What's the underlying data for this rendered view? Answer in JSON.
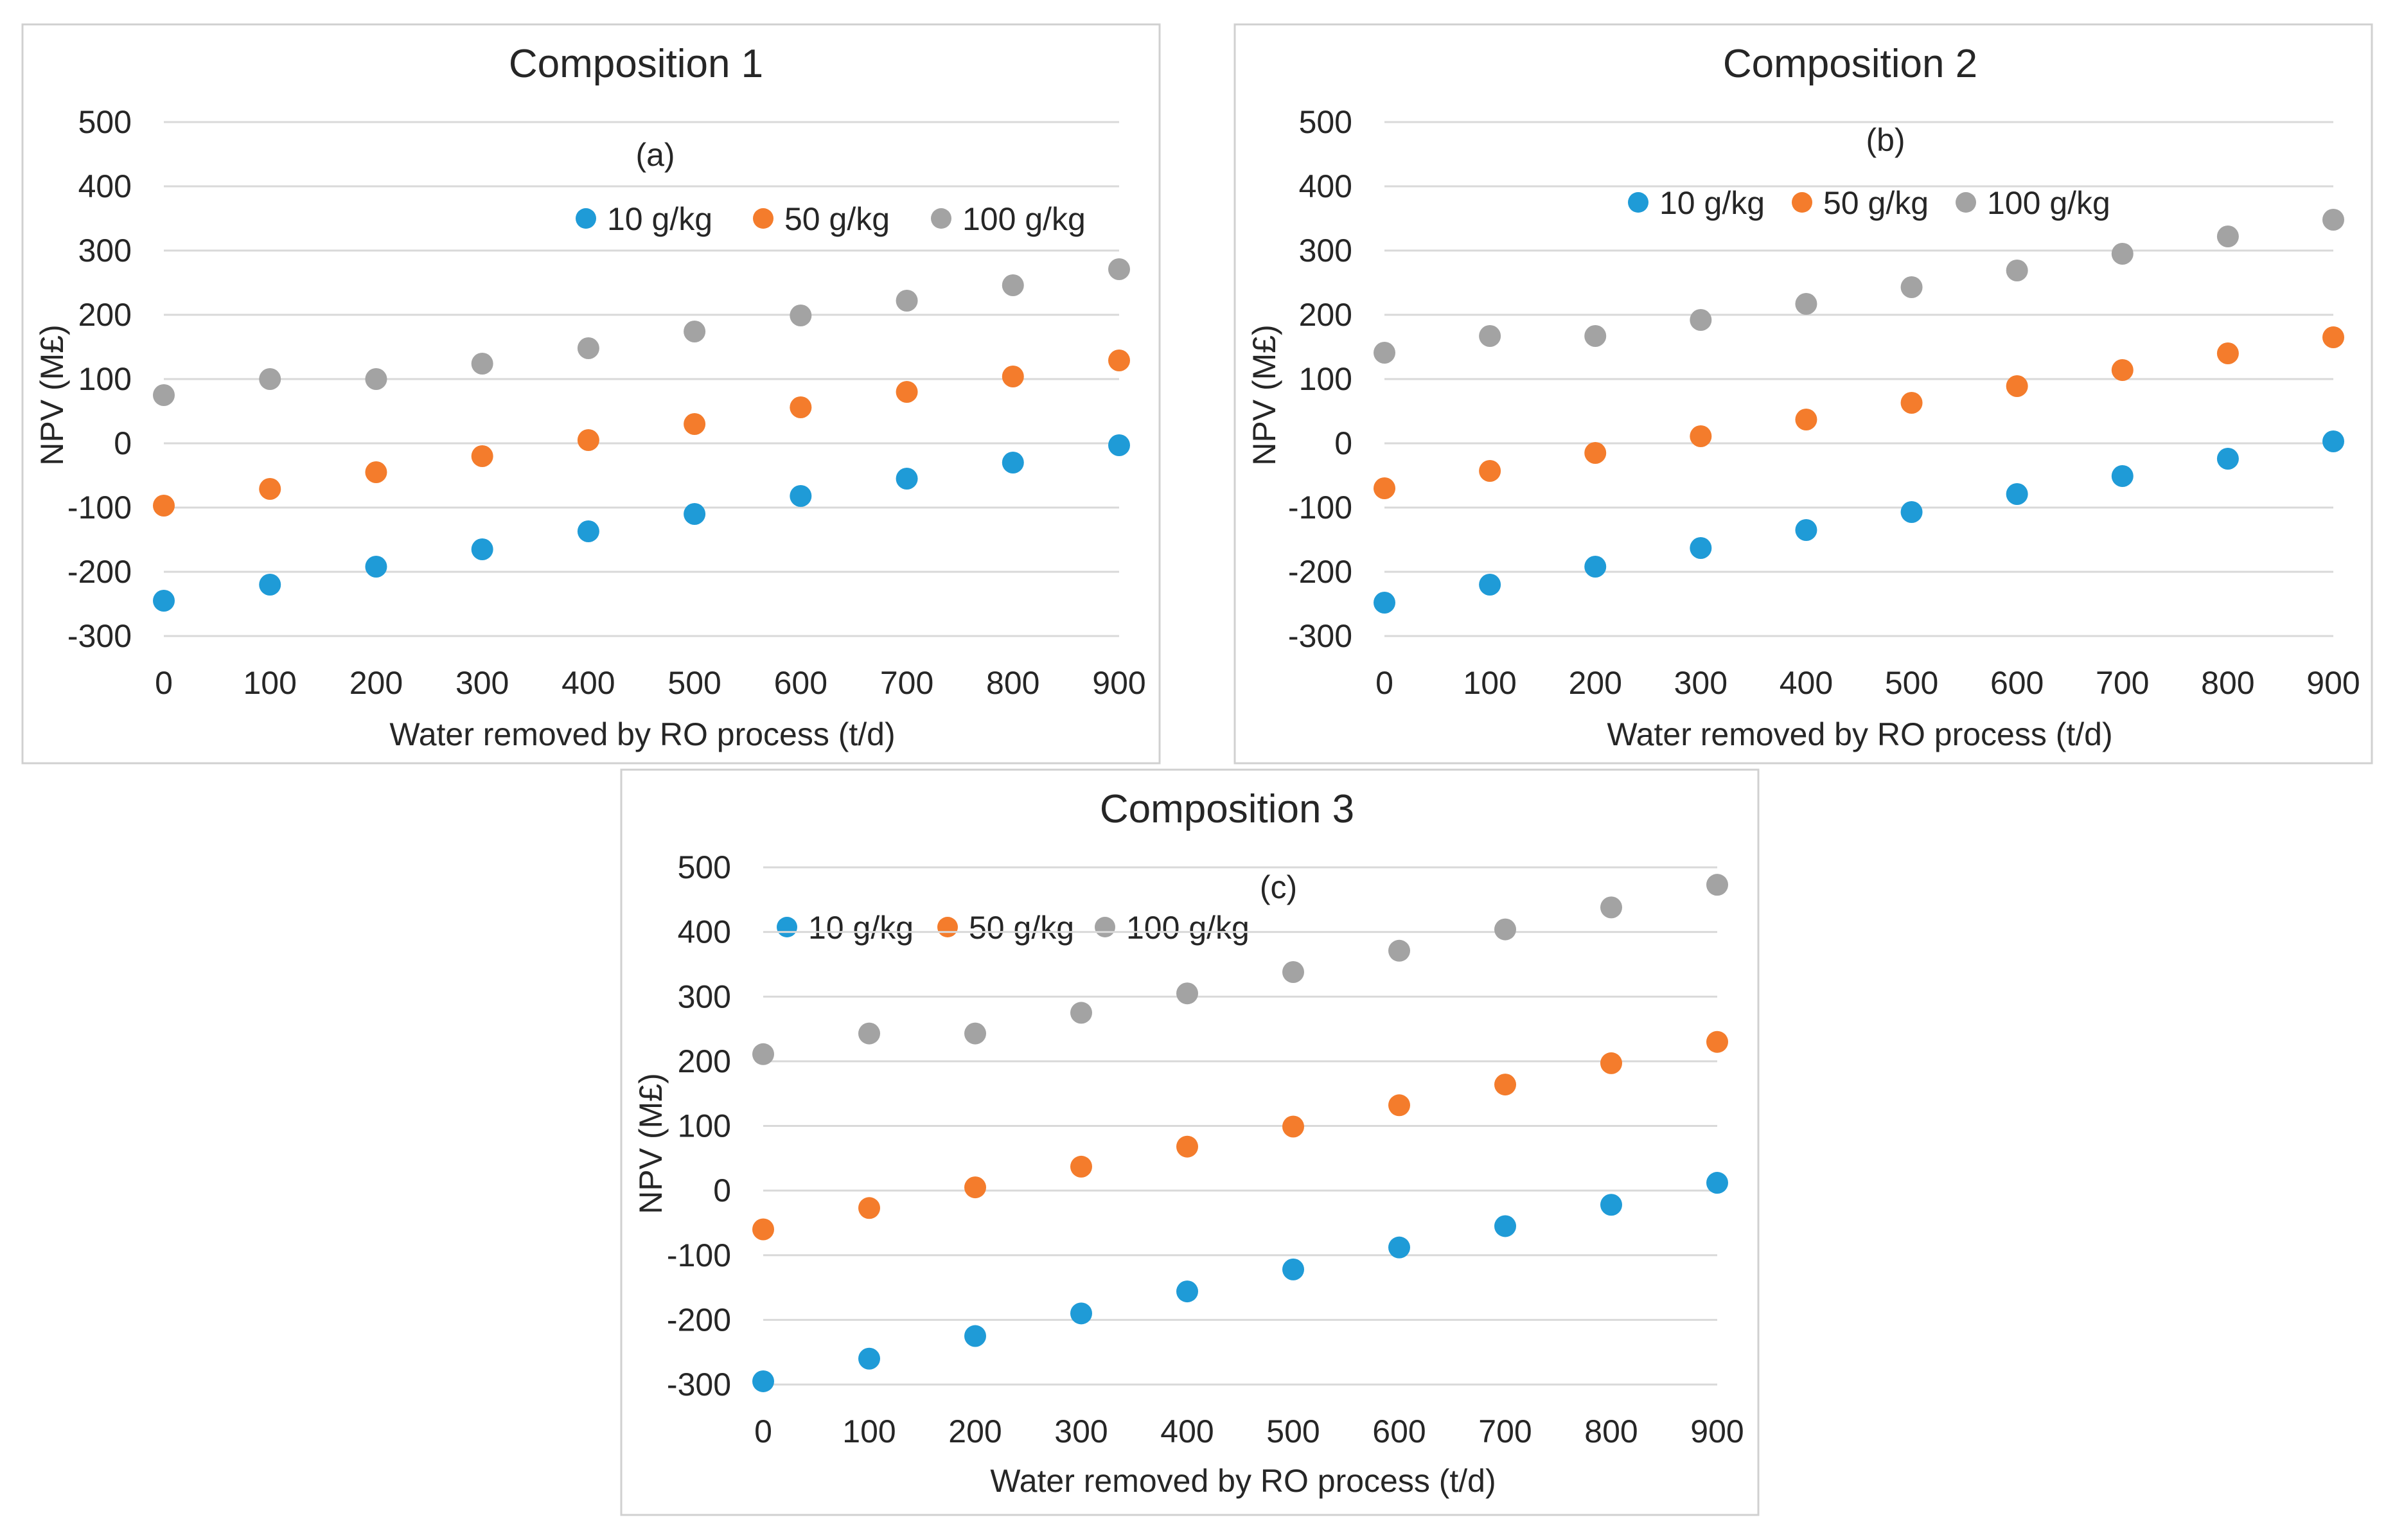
{
  "colors": {
    "s10": "#1f9bd7",
    "s50": "#f47c2c",
    "s100": "#a3a3a3",
    "grid": "#d9d9d9",
    "text": "#262626"
  },
  "chart_data": [
    {
      "type": "scatter",
      "title": "Composition 1",
      "panel_tag": "(a)",
      "xlabel": "Water removed by RO process (t/d)",
      "ylabel": "NPV (M£)",
      "x": [
        0,
        100,
        200,
        300,
        400,
        500,
        600,
        700,
        800,
        900
      ],
      "xlim": [
        0,
        900
      ],
      "ylim": [
        -300,
        500
      ],
      "xticks": [
        "0",
        "100",
        "200",
        "300",
        "400",
        "500",
        "600",
        "700",
        "800",
        "900"
      ],
      "yticks": [
        "500",
        "400",
        "300",
        "200",
        "100",
        "0",
        "-100",
        "-200",
        "-300"
      ],
      "legend": [
        "10 g/kg",
        "50 g/kg",
        "100 g/kg"
      ],
      "series": [
        {
          "name": "10 g/kg",
          "values": [
            -245,
            -220,
            -192,
            -165,
            -137,
            -110,
            -82,
            -55,
            -30,
            -3
          ]
        },
        {
          "name": "50 g/kg",
          "values": [
            -97,
            -71,
            -45,
            -20,
            5,
            30,
            56,
            80,
            104,
            129
          ]
        },
        {
          "name": "100 g/kg",
          "values": [
            75,
            100,
            100,
            124,
            148,
            174,
            199,
            222,
            246,
            271
          ]
        }
      ]
    },
    {
      "type": "scatter",
      "title": "Composition 2",
      "panel_tag": "(b)",
      "xlabel": "Water removed by RO process (t/d)",
      "ylabel": "NPV (M£)",
      "x": [
        0,
        100,
        200,
        300,
        400,
        500,
        600,
        700,
        800,
        900
      ],
      "xlim": [
        0,
        900
      ],
      "ylim": [
        -300,
        500
      ],
      "xticks": [
        "0",
        "100",
        "200",
        "300",
        "400",
        "500",
        "600",
        "700",
        "800",
        "900"
      ],
      "yticks": [
        "500",
        "400",
        "300",
        "200",
        "100",
        "0",
        "-100",
        "-200",
        "-300"
      ],
      "legend": [
        "10 g/kg",
        "50 g/kg",
        "100 g/kg"
      ],
      "series": [
        {
          "name": "10 g/kg",
          "values": [
            -248,
            -220,
            -192,
            -163,
            -135,
            -107,
            -79,
            -51,
            -24,
            3
          ]
        },
        {
          "name": "50 g/kg",
          "values": [
            -70,
            -43,
            -15,
            11,
            37,
            63,
            89,
            114,
            140,
            165
          ]
        },
        {
          "name": "100 g/kg",
          "values": [
            141,
            167,
            167,
            192,
            217,
            243,
            269,
            295,
            322,
            348
          ]
        }
      ]
    },
    {
      "type": "scatter",
      "title": "Composition 3",
      "panel_tag": "(c)",
      "xlabel": "Water removed by RO process (t/d)",
      "ylabel": "NPV (M£)",
      "x": [
        0,
        100,
        200,
        300,
        400,
        500,
        600,
        700,
        800,
        900
      ],
      "xlim": [
        0,
        900
      ],
      "ylim": [
        -300,
        500
      ],
      "xticks": [
        "0",
        "100",
        "200",
        "300",
        "400",
        "500",
        "600",
        "700",
        "800",
        "900"
      ],
      "yticks": [
        "500",
        "400",
        "300",
        "200",
        "100",
        "0",
        "-100",
        "-200",
        "-300"
      ],
      "legend": [
        "10 g/kg",
        "50 g/kg",
        "100 g/kg"
      ],
      "series": [
        {
          "name": "10 g/kg",
          "values": [
            -295,
            -260,
            -225,
            -190,
            -156,
            -122,
            -88,
            -55,
            -22,
            12
          ]
        },
        {
          "name": "50 g/kg",
          "values": [
            -60,
            -27,
            5,
            37,
            68,
            99,
            132,
            164,
            197,
            230
          ]
        },
        {
          "name": "100 g/kg",
          "values": [
            211,
            243,
            243,
            275,
            305,
            338,
            371,
            404,
            438,
            473
          ]
        }
      ]
    }
  ]
}
